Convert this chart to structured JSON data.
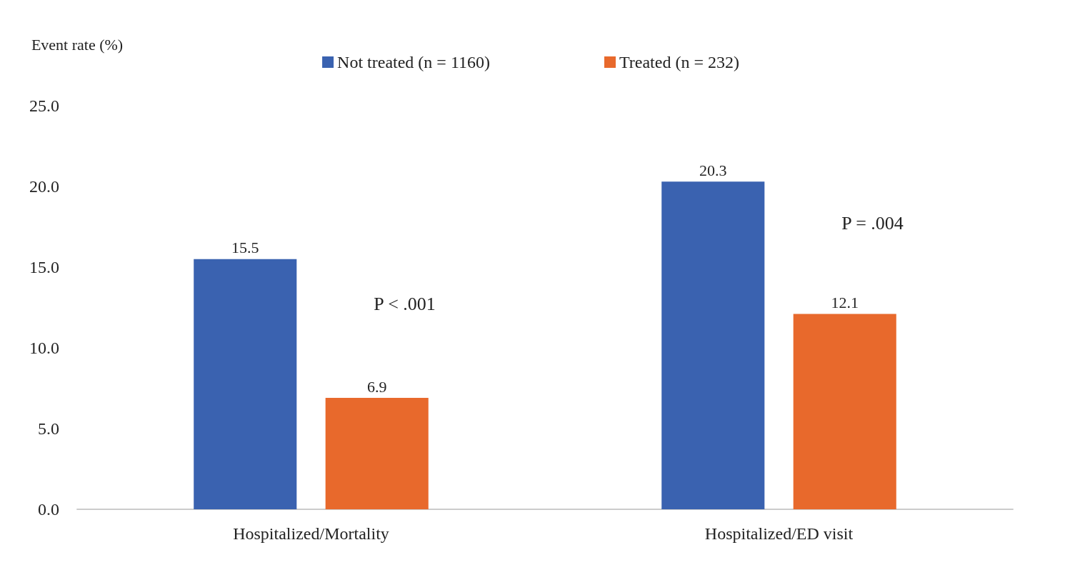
{
  "chart_data": {
    "type": "bar",
    "ylabel": "Event rate (%)",
    "categories": [
      "Hospitalized/Mortality",
      "Hospitalized/ED visit"
    ],
    "series": [
      {
        "name": "Not treated (n = 1160)",
        "color": "#3a62b0",
        "values": [
          15.5,
          20.3
        ]
      },
      {
        "name": "Treated (n = 232)",
        "color": "#e8692c",
        "values": [
          6.9,
          12.1
        ]
      }
    ],
    "ylim": [
      0,
      25
    ],
    "yticks": [
      {
        "value": 0,
        "label": "0.0"
      },
      {
        "value": 5,
        "label": "5.0"
      },
      {
        "value": 10,
        "label": "10.0"
      },
      {
        "value": 15,
        "label": "15.0"
      },
      {
        "value": 20,
        "label": "20.0"
      },
      {
        "value": 25,
        "label": "25.0"
      }
    ],
    "annotations": [
      "P < .001",
      "P = .004"
    ],
    "data_labels": true,
    "grid": false,
    "legend": "top"
  }
}
